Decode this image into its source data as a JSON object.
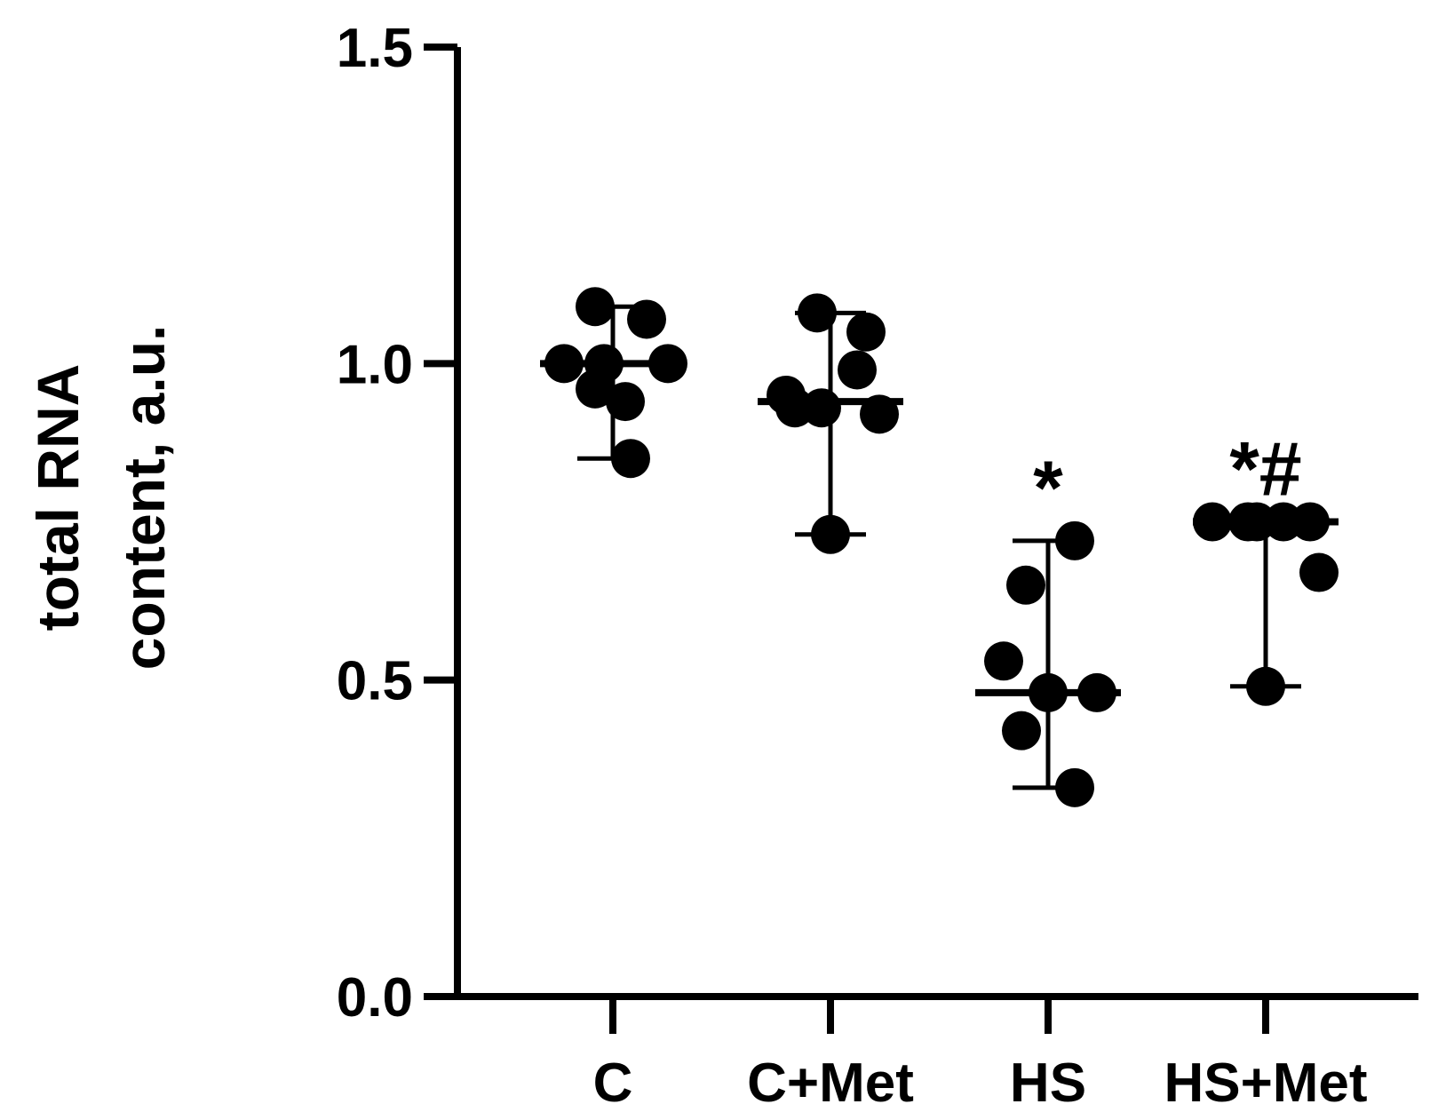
{
  "chart_data": {
    "type": "scatter",
    "ylabel_lines": [
      "total RNA",
      "content, a.u."
    ],
    "xlabel": "",
    "ylim": [
      0,
      1.5
    ],
    "yticks": [
      {
        "value": 0.0,
        "label": "0.0"
      },
      {
        "value": 0.5,
        "label": "0.5"
      },
      {
        "value": 1.0,
        "label": "1.0"
      },
      {
        "value": 1.5,
        "label": "1.5"
      }
    ],
    "categories": [
      "C",
      "C+Met",
      "HS",
      "HS+Met"
    ],
    "groups": [
      {
        "category": "C",
        "points": [
          1.09,
          1.07,
          1.0,
          1.0,
          1.0,
          0.96,
          0.94,
          0.85
        ],
        "median": 1.0,
        "range": [
          0.85,
          1.09
        ],
        "significance": ""
      },
      {
        "category": "C+Met",
        "points": [
          1.08,
          1.05,
          0.99,
          0.95,
          0.93,
          0.93,
          0.92,
          0.73
        ],
        "median": 0.94,
        "range": [
          0.73,
          1.08
        ],
        "significance": ""
      },
      {
        "category": "HS",
        "points": [
          0.72,
          0.65,
          0.53,
          0.48,
          0.48,
          0.42,
          0.33
        ],
        "median": 0.48,
        "range": [
          0.33,
          0.72
        ],
        "significance": "*"
      },
      {
        "category": "HS+Met",
        "points": [
          0.75,
          0.75,
          0.75,
          0.75,
          0.75,
          0.67,
          0.49
        ],
        "median": 0.75,
        "range": [
          0.49,
          0.75
        ],
        "significance": "*#"
      }
    ],
    "colors": {
      "points": "#000000",
      "axes": "#000000"
    }
  }
}
